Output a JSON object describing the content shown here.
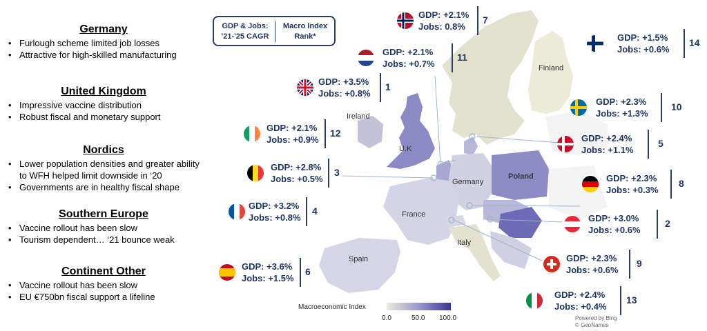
{
  "sections": [
    {
      "title": "Germany",
      "bullets": [
        "Furlough scheme limited job losses",
        "Attractive for high-skilled manufacturing"
      ]
    },
    {
      "title": "United Kingdom",
      "bullets": [
        "Impressive vaccine distribution",
        "Robust fiscal and monetary support"
      ]
    },
    {
      "title": "Nordics",
      "bullets": [
        "Lower population densities and greater ability to WFH helped limit downside in ‘20",
        "Governments are in healthy fiscal shape"
      ]
    },
    {
      "title": "Southern Europe",
      "bullets": [
        "Vaccine rollout has been slow",
        "Tourism dependent… ‘21 bounce weak"
      ]
    },
    {
      "title": "Continent Other",
      "bullets": [
        "Vaccine rollout has been slow",
        "EU €750bn fiscal support a lifeline"
      ]
    }
  ],
  "legend": {
    "col1_line1": "GDP & Jobs:",
    "col1_line2": "'21-'25 CAGR",
    "col2_line1": "Macro Index",
    "col2_line2": "Rank*"
  },
  "callouts": [
    {
      "country": "Norway",
      "gdp": "GDP: +2.1%",
      "jobs": "Jobs: 0.8%",
      "rank": "7"
    },
    {
      "country": "Finland",
      "gdp": "GDP: +1.5%",
      "jobs": "Jobs: +0.6%",
      "rank": "14"
    },
    {
      "country": "Netherlands",
      "gdp": "GDP: +2.1%",
      "jobs": "Jobs: +0.7%",
      "rank": "11"
    },
    {
      "country": "United Kingdom",
      "gdp": "GDP: +3.5%",
      "jobs": "Jobs: +0.8%",
      "rank": "1"
    },
    {
      "country": "Sweden",
      "gdp": "GDP: +2.3%",
      "jobs": "Jobs: +1.3%",
      "rank": "10"
    },
    {
      "country": "Ireland",
      "gdp": "GDP: +2.1%",
      "jobs": "Jobs: +0.9%",
      "rank": "12"
    },
    {
      "country": "Denmark",
      "gdp": "GDP: +2.4%",
      "jobs": "Jobs: +1.1%",
      "rank": "5"
    },
    {
      "country": "Belgium",
      "gdp": "GDP: +2.8%",
      "jobs": "Jobs: +0.5%",
      "rank": "3"
    },
    {
      "country": "Germany",
      "gdp": "GDP: +2.3%",
      "jobs": "Jobs: +0.3%",
      "rank": "8"
    },
    {
      "country": "France",
      "gdp": "GDP: +3.2%",
      "jobs": "Jobs: +0.8%",
      "rank": "4"
    },
    {
      "country": "Austria",
      "gdp": "GDP: +3.0%",
      "jobs": "Jobs: +0.6%",
      "rank": "2"
    },
    {
      "country": "Switzerland",
      "gdp": "GDP: +2.3%",
      "jobs": "Jobs: +0.6%",
      "rank": "9"
    },
    {
      "country": "Spain",
      "gdp": "GDP: +3.6%",
      "jobs": "Jobs: +1.5%",
      "rank": "6"
    },
    {
      "country": "Italy",
      "gdp": "GDP: +2.4%",
      "jobs": "Jobs: +0.4%",
      "rank": "13"
    }
  ],
  "map_labels": {
    "finland": "Finland",
    "ireland": "Ireland",
    "uk": "U.K",
    "poland": "Poland",
    "germany": "Germany",
    "france": "France",
    "italy": "Italy",
    "spain": "Spain"
  },
  "scale": {
    "title": "Macroeconomic Index",
    "min": "0.0",
    "mid": "50.0",
    "max": "100.0",
    "colors": [
      "#ecebd7",
      "#9b98d0",
      "#3c3296"
    ]
  },
  "credits": {
    "line1": "Powered by Bing",
    "line2": "© GeoNames"
  }
}
